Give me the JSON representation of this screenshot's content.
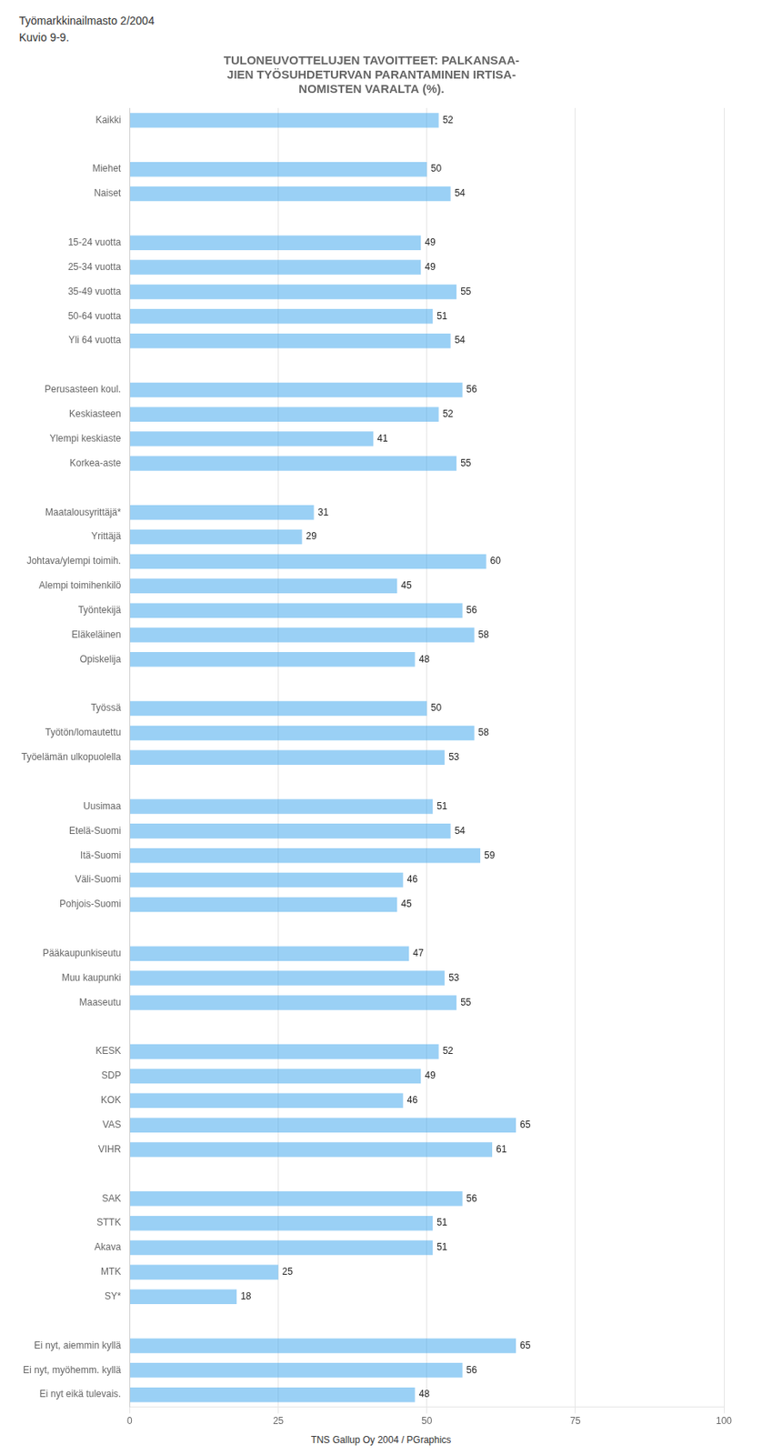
{
  "chart_data": {
    "type": "bar",
    "orientation": "horizontal",
    "title": [
      "TULONEUVOTTELUJEN TAVOITTEET: PALKANSAA-",
      "JIEN TYÖSUHDETURVAN PARANTAMINEN IRTISA-",
      "NOMISTEN VARALTA (%)."
    ],
    "annotations": [
      "Työmarkkinailmasto 2/2004",
      "Kuvio 9-9.",
      "TNS Gallup Oy  2004 / PGraphics"
    ],
    "categories": [
      "Kaikki",
      null,
      "Miehet",
      "Naiset",
      null,
      "15-24 vuotta",
      "25-34 vuotta",
      "35-49 vuotta",
      "50-64 vuotta",
      "Yli 64 vuotta",
      null,
      "Perusasteen koul.",
      "Keskiasteen",
      "Ylempi keskiaste",
      "Korkea-aste",
      null,
      "Maatalousyrittäjä*",
      "Yrittäjä",
      "Johtava/ylempi toimih.",
      "Alempi toimihenkilö",
      "Työntekijä",
      "Eläkeläinen",
      "Opiskelija",
      null,
      "Työssä",
      "Työtön/lomautettu",
      "Työelämän ulkopuolella",
      null,
      "Uusimaa",
      "Etelä-Suomi",
      "Itä-Suomi",
      "Väli-Suomi",
      "Pohjois-Suomi",
      null,
      "Pääkaupunkiseutu",
      "Muu kaupunki",
      "Maaseutu",
      null,
      "KESK",
      "SDP",
      "KOK",
      "VAS",
      "VIHR",
      null,
      "SAK",
      "STTK",
      "Akava",
      "MTK",
      "SY*",
      null,
      "Ei nyt, aiemmin kyllä",
      "Ei nyt, myöhemm. kyllä",
      "Ei nyt eikä tulevais."
    ],
    "values": [
      52,
      null,
      50,
      54,
      null,
      49,
      49,
      55,
      51,
      54,
      null,
      56,
      52,
      41,
      55,
      null,
      31,
      29,
      60,
      45,
      56,
      58,
      48,
      null,
      50,
      58,
      53,
      null,
      51,
      54,
      59,
      46,
      45,
      null,
      47,
      53,
      55,
      null,
      52,
      49,
      46,
      65,
      61,
      null,
      56,
      51,
      51,
      25,
      18,
      null,
      65,
      56,
      48
    ],
    "xlim": [
      0,
      100
    ],
    "xticks": [
      0,
      25,
      50,
      75,
      100
    ],
    "grid": true,
    "data_labels": true
  }
}
